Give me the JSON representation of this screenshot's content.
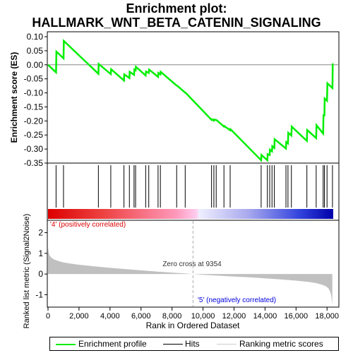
{
  "title_line1": "Enrichment plot:",
  "title_line2": "HALLMARK_WNT_BETA_CATENIN_SIGNALING",
  "chart_data": {
    "type": "line",
    "x_max": 18400,
    "es_panel": {
      "ylabel": "Enrichment score (ES)",
      "ylim": [
        -0.35,
        0.1
      ],
      "yticks": [
        "0.10",
        "0.05",
        "0.00",
        "-0.05",
        "-0.10",
        "-0.15",
        "-0.20",
        "-0.25",
        "-0.30",
        "-0.35"
      ],
      "ytick_values": [
        0.1,
        0.05,
        0.0,
        -0.05,
        -0.1,
        -0.15,
        -0.2,
        -0.25,
        -0.3,
        -0.35
      ],
      "grid": false,
      "series": [
        {
          "name": "Enrichment profile",
          "color": "#00ee00",
          "x": [
            0,
            520,
            540,
            1000,
            1020,
            3250,
            3270,
            4050,
            4070,
            4900,
            4920,
            5250,
            5270,
            5550,
            5570,
            5650,
            5670,
            6300,
            6320,
            6500,
            6520,
            7100,
            7120,
            7250,
            7270,
            8300,
            8320,
            8850,
            8870,
            10550,
            10570,
            10700,
            10720,
            10850,
            10870,
            11350,
            11370,
            11750,
            11770,
            13750,
            13770,
            14150,
            14170,
            14300,
            14320,
            14450,
            14470,
            14600,
            14620,
            15350,
            15370,
            15480,
            15500,
            15700,
            15720,
            16700,
            16720,
            17300,
            17320,
            17750,
            17770,
            17830,
            17850,
            18000,
            18020,
            18350,
            18370
          ],
          "y": [
            0.0,
            -0.027,
            0.047,
            0.023,
            0.085,
            -0.032,
            0.003,
            -0.033,
            -0.016,
            -0.056,
            -0.034,
            -0.047,
            -0.025,
            -0.036,
            -0.017,
            -0.02,
            -0.007,
            -0.038,
            -0.024,
            -0.029,
            -0.017,
            -0.043,
            -0.029,
            -0.034,
            -0.025,
            -0.074,
            -0.074,
            -0.099,
            -0.099,
            -0.196,
            -0.194,
            -0.199,
            -0.195,
            -0.197,
            -0.197,
            -0.22,
            -0.218,
            -0.233,
            -0.229,
            -0.34,
            -0.321,
            -0.34,
            -0.318,
            -0.321,
            -0.302,
            -0.308,
            -0.29,
            -0.296,
            -0.265,
            -0.298,
            -0.275,
            -0.28,
            -0.242,
            -0.252,
            -0.22,
            -0.271,
            -0.232,
            -0.261,
            -0.215,
            -0.245,
            -0.18,
            -0.18,
            -0.12,
            -0.128,
            -0.066,
            -0.083,
            0.005
          ]
        }
      ],
      "baseline": 0
    },
    "hits": {
      "name": "Hits",
      "positions": [
        520,
        1000,
        3250,
        4050,
        4900,
        5250,
        5550,
        5650,
        6300,
        6500,
        7100,
        7250,
        8300,
        8850,
        10550,
        10700,
        10850,
        11350,
        11750,
        13750,
        14150,
        14300,
        14450,
        14600,
        15350,
        15480,
        15700,
        16700,
        17300,
        17750,
        17830,
        18000,
        18350
      ]
    },
    "ranking": {
      "name": "Ranking metric scores",
      "ylabel": "Ranked list metric (Signal2Noise)",
      "xlabel": "Rank in Ordered Dataset",
      "ylim": [
        -1.6,
        2.6
      ],
      "yticks": [
        "2",
        "1",
        "0",
        "-1"
      ],
      "ytick_values": [
        2,
        1,
        0,
        -1
      ],
      "xticks": [
        "0",
        "2,000",
        "4,000",
        "6,000",
        "8,000",
        "10,000",
        "12,000",
        "14,000",
        "16,000",
        "18,000"
      ],
      "xtick_values": [
        0,
        2000,
        4000,
        6000,
        8000,
        10000,
        12000,
        14000,
        16000,
        18000
      ],
      "curve_x": [
        0,
        40,
        100,
        200,
        400,
        700,
        1000,
        1500,
        2000,
        3000,
        4000,
        5000,
        6000,
        7000,
        8000,
        8800,
        9354,
        10000,
        11000,
        12000,
        13000,
        14000,
        15000,
        16000,
        16800,
        17300,
        17700,
        17950,
        18100,
        18200,
        18260,
        18300,
        18340
      ],
      "curve_y": [
        1.3,
        1.05,
        0.9,
        0.8,
        0.7,
        0.62,
        0.56,
        0.5,
        0.45,
        0.37,
        0.3,
        0.24,
        0.18,
        0.12,
        0.07,
        0.03,
        0.0,
        -0.04,
        -0.08,
        -0.12,
        -0.16,
        -0.21,
        -0.26,
        -0.32,
        -0.38,
        -0.44,
        -0.52,
        -0.6,
        -0.7,
        -0.85,
        -1.0,
        -1.2,
        -1.5
      ],
      "zero_cross_label": "Zero cross at 9354",
      "zero_cross_x": 9354,
      "pos_label": "'4' (positively correlated)",
      "neg_label": "'5' (negatively correlated)"
    }
  },
  "legend": {
    "items": [
      {
        "label": "Enrichment profile",
        "color": "#00ee00"
      },
      {
        "label": "Hits",
        "color": "#000000"
      },
      {
        "label": "Ranking metric scores",
        "color": "#cccccc"
      }
    ]
  }
}
